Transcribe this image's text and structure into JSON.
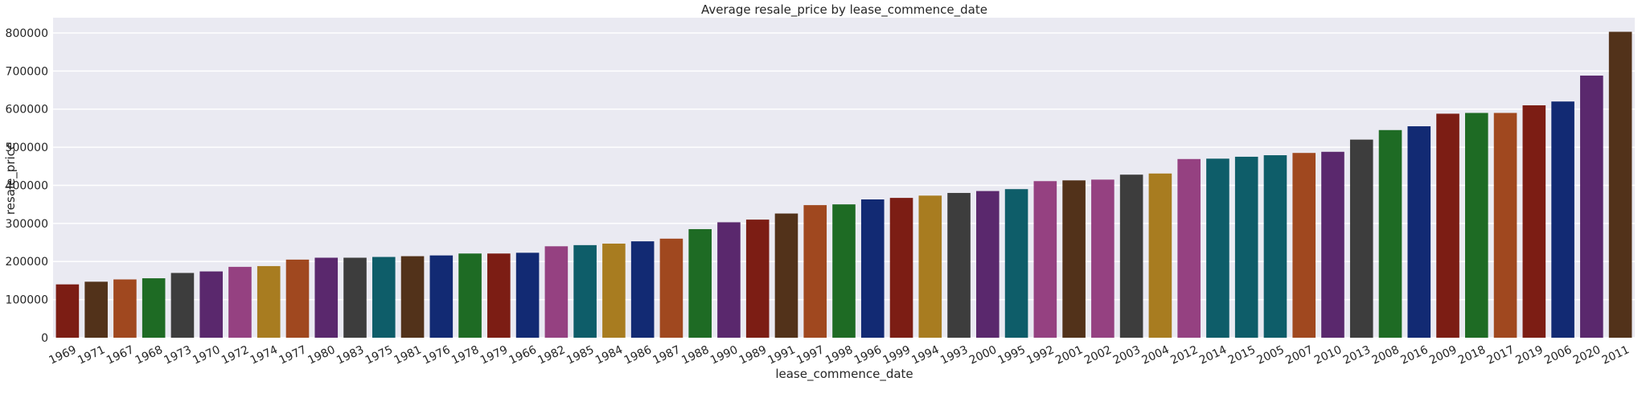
{
  "chart_data": {
    "type": "bar",
    "title": "Average resale_price by lease_commence_date",
    "xlabel": "lease_commence_date",
    "ylabel": "resale_price",
    "ylim": [
      0,
      840000
    ],
    "yticks": [
      0,
      100000,
      200000,
      300000,
      400000,
      500000,
      600000,
      700000,
      800000
    ],
    "grid": true,
    "background": "#eaeaf2",
    "categories": [
      "1969",
      "1971",
      "1967",
      "1968",
      "1973",
      "1970",
      "1972",
      "1974",
      "1977",
      "1980",
      "1983",
      "1975",
      "1981",
      "1976",
      "1978",
      "1979",
      "1966",
      "1982",
      "1985",
      "1984",
      "1986",
      "1987",
      "1988",
      "1990",
      "1989",
      "1991",
      "1997",
      "1998",
      "1996",
      "1999",
      "1994",
      "1993",
      "2000",
      "1995",
      "1992",
      "2001",
      "2002",
      "2003",
      "2004",
      "2012",
      "2014",
      "2015",
      "2005",
      "2007",
      "2010",
      "2013",
      "2008",
      "2016",
      "2009",
      "2018",
      "2017",
      "2019",
      "2006",
      "2020",
      "2011"
    ],
    "values": [
      140000,
      147000,
      153000,
      156000,
      170000,
      174000,
      186000,
      188000,
      205000,
      210000,
      210000,
      212000,
      214000,
      216000,
      221000,
      221000,
      223000,
      240000,
      243000,
      247000,
      253000,
      260000,
      285000,
      303000,
      310000,
      326000,
      348000,
      350000,
      363000,
      367000,
      373000,
      380000,
      385000,
      390000,
      411000,
      413000,
      415000,
      428000,
      431000,
      469000,
      470000,
      475000,
      479000,
      485000,
      488000,
      520000,
      545000,
      555000,
      588000,
      590000,
      590000,
      610000,
      620000,
      688000,
      803000
    ],
    "palette": [
      "#7c1d14",
      "#52321a",
      "#a0481f",
      "#1e6b24",
      "#3d3d3d",
      "#5a286d",
      "#954181",
      "#a87c20",
      "#0e5d69",
      "#122a73"
    ],
    "bar_color_order": [
      0,
      1,
      2,
      3,
      4,
      5,
      6,
      7,
      2,
      5,
      4,
      8,
      1,
      9,
      3,
      0,
      9,
      6,
      8,
      7,
      9,
      2,
      3,
      5,
      0,
      1,
      2,
      3,
      9,
      0,
      7,
      4,
      5,
      8,
      6,
      1,
      6,
      4,
      7,
      6,
      8,
      8,
      8,
      2,
      5,
      4,
      3,
      9,
      0,
      3,
      2,
      0,
      9,
      5,
      1
    ]
  }
}
